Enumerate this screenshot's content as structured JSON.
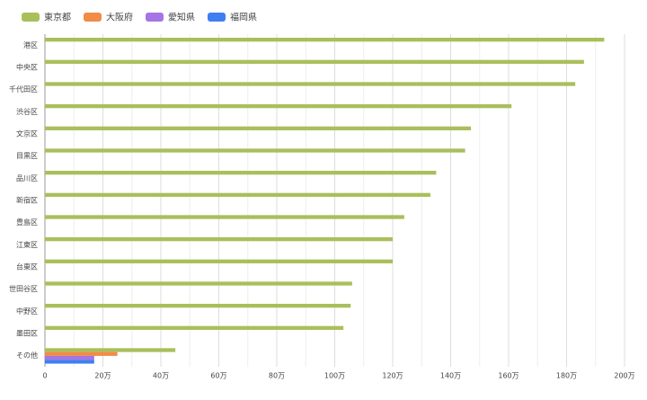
{
  "chart_data": {
    "type": "hbar",
    "categories": [
      "港区",
      "中央区",
      "千代田区",
      "渋谷区",
      "文京区",
      "目黒区",
      "品川区",
      "新宿区",
      "豊島区",
      "江東区",
      "台東区",
      "世田谷区",
      "中野区",
      "墨田区",
      "その他"
    ],
    "series": [
      {
        "name": "東京都",
        "color": "#a9bf5b",
        "values": [
          193,
          186,
          183,
          161,
          147,
          145,
          135,
          133,
          124,
          120,
          120,
          106,
          105.5,
          103,
          45
        ]
      },
      {
        "name": "大阪府",
        "color": "#f28b46",
        "values": [
          null,
          null,
          null,
          null,
          null,
          null,
          null,
          null,
          null,
          null,
          null,
          null,
          null,
          null,
          25
        ]
      },
      {
        "name": "愛知県",
        "color": "#a575e6",
        "values": [
          null,
          null,
          null,
          null,
          null,
          null,
          null,
          null,
          null,
          null,
          null,
          null,
          null,
          null,
          17
        ]
      },
      {
        "name": "福岡県",
        "color": "#3f7ef0",
        "values": [
          null,
          null,
          null,
          null,
          null,
          null,
          null,
          null,
          null,
          null,
          null,
          null,
          null,
          null,
          17
        ]
      }
    ],
    "xlim": [
      0,
      200
    ],
    "xticks": [
      0,
      {
        "value": 20,
        "label": "20万"
      },
      {
        "value": 40,
        "label": "40万"
      },
      {
        "value": 60,
        "label": "60万"
      },
      {
        "value": 80,
        "label": "80万"
      },
      {
        "value": 100,
        "label": "100万"
      },
      {
        "value": 120,
        "label": "120万"
      },
      {
        "value": 140,
        "label": "140万"
      },
      {
        "value": 160,
        "label": "160万"
      },
      {
        "value": 180,
        "label": "180万"
      },
      {
        "value": 200,
        "label": "200万"
      }
    ],
    "xminorticks": [
      10,
      30,
      50,
      70,
      90,
      110,
      130,
      150,
      170,
      190
    ],
    "grid": true,
    "legend": "top-left"
  }
}
